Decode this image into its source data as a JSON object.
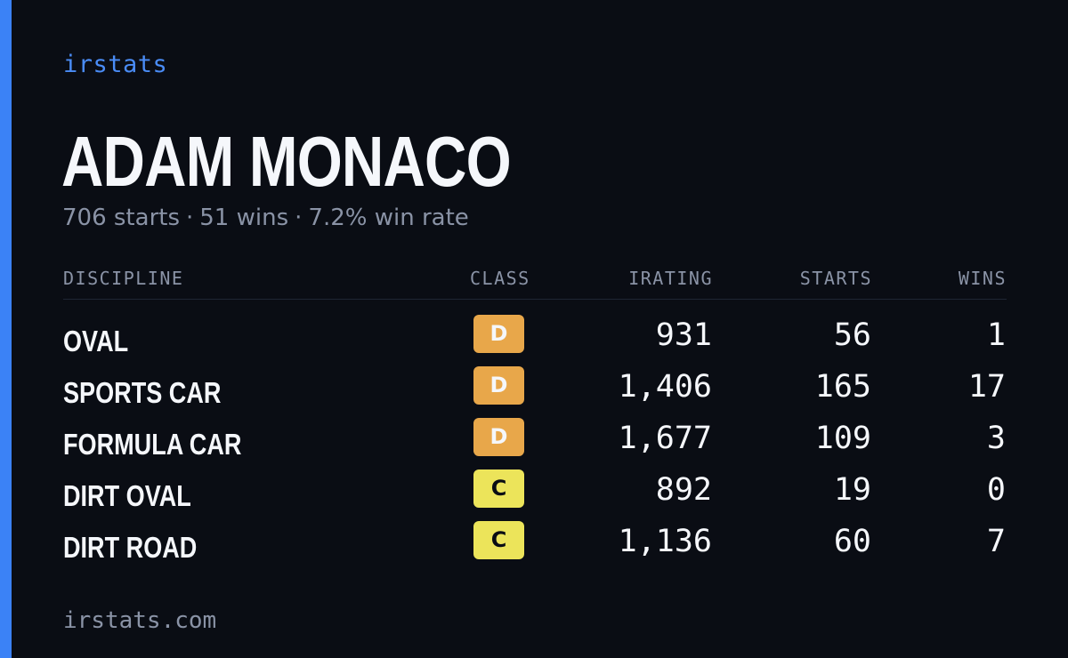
{
  "brand": "irstats",
  "driver": {
    "name": "ADAM MONACO",
    "starts_text": "706 starts",
    "wins_text": "51 wins",
    "win_rate_text": "7.2% win rate",
    "separator": "·"
  },
  "table": {
    "headers": {
      "discipline": "DISCIPLINE",
      "class": "CLASS",
      "irating": "IRATING",
      "starts": "STARTS",
      "wins": "WINS"
    },
    "rows": [
      {
        "discipline": "OVAL",
        "class": "D",
        "irating": "931",
        "starts": "56",
        "wins": "1"
      },
      {
        "discipline": "SPORTS CAR",
        "class": "D",
        "irating": "1,406",
        "starts": "165",
        "wins": "17"
      },
      {
        "discipline": "FORMULA CAR",
        "class": "D",
        "irating": "1,677",
        "starts": "109",
        "wins": "3"
      },
      {
        "discipline": "DIRT OVAL",
        "class": "C",
        "irating": "892",
        "starts": "19",
        "wins": "0"
      },
      {
        "discipline": "DIRT ROAD",
        "class": "C",
        "irating": "1,136",
        "starts": "60",
        "wins": "7"
      }
    ]
  },
  "footer": "irstats.com",
  "colors": {
    "background": "#0a0d14",
    "accent": "#3b82f6",
    "class_d": "#e8a74a",
    "class_c": "#ece45a",
    "muted_text": "#8a93a6"
  }
}
